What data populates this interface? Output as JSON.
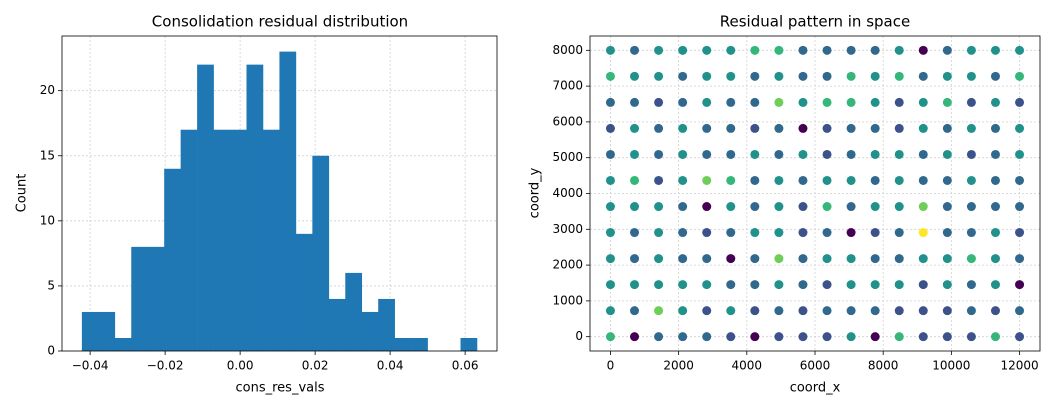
{
  "chart_data": [
    {
      "type": "histogram",
      "title": "Consolidation residual distribution",
      "x_label": "cons_res_vals",
      "y_label": "Count",
      "color": "#1f77b4",
      "grid": true,
      "bins": [
        -0.0422,
        -0.03781,
        -0.03342,
        -0.02903,
        -0.02464,
        -0.02025,
        -0.01586,
        -0.01147,
        -0.00708,
        -0.00269,
        0.0017,
        0.00609,
        0.01048,
        0.01487,
        0.01926,
        0.02365,
        0.02804,
        0.03243,
        0.03682,
        0.04121,
        0.0456,
        0.04999,
        0.05438,
        0.05877,
        0.06316
      ],
      "values": [
        3,
        3,
        1,
        8,
        8,
        14,
        17,
        22,
        17,
        17,
        22,
        17,
        23,
        9,
        15,
        4,
        6,
        3,
        4,
        1,
        1,
        0,
        0,
        1
      ],
      "xlim": [
        -0.0475,
        0.0685
      ],
      "xticks": [
        {
          "value": -0.04,
          "label": "−0.04"
        },
        {
          "value": -0.02,
          "label": "−0.02"
        },
        {
          "value": 0,
          "label": "0.00"
        },
        {
          "value": 0.02,
          "label": "0.02"
        },
        {
          "value": 0.04,
          "label": "0.04"
        },
        {
          "value": 0.06,
          "label": "0.06"
        }
      ],
      "ylim": [
        0,
        24.2
      ],
      "yticks": [
        0,
        5,
        10,
        15,
        20
      ]
    },
    {
      "type": "scatter",
      "title": "Residual pattern in space",
      "x_label": "coord_x",
      "y_label": "coord_y",
      "grid": true,
      "xlim": [
        -600,
        12600
      ],
      "xticks": [
        0,
        2000,
        4000,
        6000,
        8000,
        10000,
        12000
      ],
      "ylim": [
        -400,
        8400
      ],
      "yticks": [
        0,
        1000,
        2000,
        3000,
        4000,
        5000,
        6000,
        7000,
        8000
      ],
      "points": [
        [
          0,
          8000,
          "#21918c"
        ],
        [
          706,
          8000,
          "#31688e"
        ],
        [
          1412,
          8000,
          "#21918c"
        ],
        [
          2118,
          8000,
          "#21918c"
        ],
        [
          2824,
          8000,
          "#21918c"
        ],
        [
          3529,
          8000,
          "#21918c"
        ],
        [
          4235,
          8000,
          "#35b779"
        ],
        [
          4941,
          8000,
          "#35b779"
        ],
        [
          5647,
          8000,
          "#31688e"
        ],
        [
          6353,
          8000,
          "#31688e"
        ],
        [
          7059,
          8000,
          "#31688e"
        ],
        [
          7765,
          8000,
          "#31688e"
        ],
        [
          8471,
          8000,
          "#21918c"
        ],
        [
          9176,
          8000,
          "#440154"
        ],
        [
          9882,
          8000,
          "#31688e"
        ],
        [
          10588,
          8000,
          "#21918c"
        ],
        [
          11294,
          8000,
          "#21918c"
        ],
        [
          12000,
          8000,
          "#21918c"
        ],
        [
          0,
          7273,
          "#35b779"
        ],
        [
          706,
          7273,
          "#21918c"
        ],
        [
          1412,
          7273,
          "#21918c"
        ],
        [
          2118,
          7273,
          "#31688e"
        ],
        [
          2824,
          7273,
          "#21918c"
        ],
        [
          3529,
          7273,
          "#21918c"
        ],
        [
          4235,
          7273,
          "#31688e"
        ],
        [
          4941,
          7273,
          "#21918c"
        ],
        [
          5647,
          7273,
          "#31688e"
        ],
        [
          6353,
          7273,
          "#31688e"
        ],
        [
          7059,
          7273,
          "#35b779"
        ],
        [
          7765,
          7273,
          "#21918c"
        ],
        [
          8471,
          7273,
          "#35b779"
        ],
        [
          9176,
          7273,
          "#31688e"
        ],
        [
          9882,
          7273,
          "#21918c"
        ],
        [
          10588,
          7273,
          "#21918c"
        ],
        [
          11294,
          7273,
          "#31688e"
        ],
        [
          12000,
          7273,
          "#35b779"
        ],
        [
          0,
          6545,
          "#31688e"
        ],
        [
          706,
          6545,
          "#31688e"
        ],
        [
          1412,
          6545,
          "#3b528b"
        ],
        [
          2118,
          6545,
          "#31688e"
        ],
        [
          2824,
          6545,
          "#21918c"
        ],
        [
          3529,
          6545,
          "#31688e"
        ],
        [
          4235,
          6545,
          "#31688e"
        ],
        [
          4941,
          6545,
          "#6ece58"
        ],
        [
          5647,
          6545,
          "#21918c"
        ],
        [
          6353,
          6545,
          "#35b779"
        ],
        [
          7059,
          6545,
          "#35b779"
        ],
        [
          7765,
          6545,
          "#21918c"
        ],
        [
          8471,
          6545,
          "#3b528b"
        ],
        [
          9176,
          6545,
          "#21918c"
        ],
        [
          9882,
          6545,
          "#35b779"
        ],
        [
          10588,
          6545,
          "#3b528b"
        ],
        [
          11294,
          6545,
          "#21918c"
        ],
        [
          12000,
          6545,
          "#3b528b"
        ],
        [
          0,
          5818,
          "#3b528b"
        ],
        [
          706,
          5818,
          "#21918c"
        ],
        [
          1412,
          5818,
          "#31688e"
        ],
        [
          2118,
          5818,
          "#21918c"
        ],
        [
          2824,
          5818,
          "#31688e"
        ],
        [
          3529,
          5818,
          "#31688e"
        ],
        [
          4235,
          5818,
          "#3b528b"
        ],
        [
          4941,
          5818,
          "#31688e"
        ],
        [
          5647,
          5818,
          "#440154"
        ],
        [
          6353,
          5818,
          "#3b528b"
        ],
        [
          7059,
          5818,
          "#31688e"
        ],
        [
          7765,
          5818,
          "#31688e"
        ],
        [
          8471,
          5818,
          "#3b528b"
        ],
        [
          9176,
          5818,
          "#21918c"
        ],
        [
          9882,
          5818,
          "#31688e"
        ],
        [
          10588,
          5818,
          "#21918c"
        ],
        [
          11294,
          5818,
          "#31688e"
        ],
        [
          12000,
          5818,
          "#21918c"
        ],
        [
          0,
          5091,
          "#31688e"
        ],
        [
          706,
          5091,
          "#21918c"
        ],
        [
          1412,
          5091,
          "#31688e"
        ],
        [
          2118,
          5091,
          "#21918c"
        ],
        [
          2824,
          5091,
          "#31688e"
        ],
        [
          3529,
          5091,
          "#31688e"
        ],
        [
          4235,
          5091,
          "#21918c"
        ],
        [
          4941,
          5091,
          "#31688e"
        ],
        [
          5647,
          5091,
          "#21918c"
        ],
        [
          6353,
          5091,
          "#3b528b"
        ],
        [
          7059,
          5091,
          "#31688e"
        ],
        [
          7765,
          5091,
          "#21918c"
        ],
        [
          8471,
          5091,
          "#21918c"
        ],
        [
          9176,
          5091,
          "#31688e"
        ],
        [
          9882,
          5091,
          "#21918c"
        ],
        [
          10588,
          5091,
          "#3b528b"
        ],
        [
          11294,
          5091,
          "#31688e"
        ],
        [
          12000,
          5091,
          "#21918c"
        ],
        [
          0,
          4364,
          "#21918c"
        ],
        [
          706,
          4364,
          "#35b779"
        ],
        [
          1412,
          4364,
          "#3b528b"
        ],
        [
          2118,
          4364,
          "#21918c"
        ],
        [
          2824,
          4364,
          "#6ece58"
        ],
        [
          3529,
          4364,
          "#35b779"
        ],
        [
          4235,
          4364,
          "#31688e"
        ],
        [
          4941,
          4364,
          "#21918c"
        ],
        [
          5647,
          4364,
          "#31688e"
        ],
        [
          6353,
          4364,
          "#21918c"
        ],
        [
          7059,
          4364,
          "#21918c"
        ],
        [
          7765,
          4364,
          "#31688e"
        ],
        [
          8471,
          4364,
          "#21918c"
        ],
        [
          9176,
          4364,
          "#31688e"
        ],
        [
          9882,
          4364,
          "#31688e"
        ],
        [
          10588,
          4364,
          "#21918c"
        ],
        [
          11294,
          4364,
          "#31688e"
        ],
        [
          12000,
          4364,
          "#31688e"
        ],
        [
          0,
          3636,
          "#21918c"
        ],
        [
          706,
          3636,
          "#21918c"
        ],
        [
          1412,
          3636,
          "#21918c"
        ],
        [
          2118,
          3636,
          "#31688e"
        ],
        [
          2824,
          3636,
          "#440154"
        ],
        [
          3529,
          3636,
          "#21918c"
        ],
        [
          4235,
          3636,
          "#31688e"
        ],
        [
          4941,
          3636,
          "#21918c"
        ],
        [
          5647,
          3636,
          "#3b528b"
        ],
        [
          6353,
          3636,
          "#35b779"
        ],
        [
          7059,
          3636,
          "#31688e"
        ],
        [
          7765,
          3636,
          "#21918c"
        ],
        [
          8471,
          3636,
          "#21918c"
        ],
        [
          9176,
          3636,
          "#6ece58"
        ],
        [
          9882,
          3636,
          "#31688e"
        ],
        [
          10588,
          3636,
          "#31688e"
        ],
        [
          11294,
          3636,
          "#31688e"
        ],
        [
          12000,
          3636,
          "#31688e"
        ],
        [
          0,
          2909,
          "#21918c"
        ],
        [
          706,
          2909,
          "#31688e"
        ],
        [
          1412,
          2909,
          "#21918c"
        ],
        [
          2118,
          2909,
          "#31688e"
        ],
        [
          2824,
          2909,
          "#3b528b"
        ],
        [
          3529,
          2909,
          "#31688e"
        ],
        [
          4235,
          2909,
          "#21918c"
        ],
        [
          4941,
          2909,
          "#21918c"
        ],
        [
          5647,
          2909,
          "#3b528b"
        ],
        [
          6353,
          2909,
          "#31688e"
        ],
        [
          7059,
          2909,
          "#440154"
        ],
        [
          7765,
          2909,
          "#3b528b"
        ],
        [
          8471,
          2909,
          "#31688e"
        ],
        [
          9176,
          2909,
          "#fde725"
        ],
        [
          9882,
          2909,
          "#31688e"
        ],
        [
          10588,
          2909,
          "#31688e"
        ],
        [
          11294,
          2909,
          "#21918c"
        ],
        [
          12000,
          2909,
          "#3b528b"
        ],
        [
          0,
          2182,
          "#21918c"
        ],
        [
          706,
          2182,
          "#31688e"
        ],
        [
          1412,
          2182,
          "#21918c"
        ],
        [
          2118,
          2182,
          "#31688e"
        ],
        [
          2824,
          2182,
          "#31688e"
        ],
        [
          3529,
          2182,
          "#440154"
        ],
        [
          4235,
          2182,
          "#31688e"
        ],
        [
          4941,
          2182,
          "#6ece58"
        ],
        [
          5647,
          2182,
          "#31688e"
        ],
        [
          6353,
          2182,
          "#21918c"
        ],
        [
          7059,
          2182,
          "#21918c"
        ],
        [
          7765,
          2182,
          "#31688e"
        ],
        [
          8471,
          2182,
          "#31688e"
        ],
        [
          9176,
          2182,
          "#21918c"
        ],
        [
          9882,
          2182,
          "#21918c"
        ],
        [
          10588,
          2182,
          "#35b779"
        ],
        [
          11294,
          2182,
          "#21918c"
        ],
        [
          12000,
          2182,
          "#31688e"
        ],
        [
          0,
          1455,
          "#21918c"
        ],
        [
          706,
          1455,
          "#21918c"
        ],
        [
          1412,
          1455,
          "#21918c"
        ],
        [
          2118,
          1455,
          "#21918c"
        ],
        [
          2824,
          1455,
          "#21918c"
        ],
        [
          3529,
          1455,
          "#31688e"
        ],
        [
          4235,
          1455,
          "#31688e"
        ],
        [
          4941,
          1455,
          "#21918c"
        ],
        [
          5647,
          1455,
          "#31688e"
        ],
        [
          6353,
          1455,
          "#3b528b"
        ],
        [
          7059,
          1455,
          "#21918c"
        ],
        [
          7765,
          1455,
          "#21918c"
        ],
        [
          8471,
          1455,
          "#21918c"
        ],
        [
          9176,
          1455,
          "#3b528b"
        ],
        [
          9882,
          1455,
          "#21918c"
        ],
        [
          10588,
          1455,
          "#31688e"
        ],
        [
          11294,
          1455,
          "#21918c"
        ],
        [
          12000,
          1455,
          "#440154"
        ],
        [
          0,
          727,
          "#21918c"
        ],
        [
          706,
          727,
          "#31688e"
        ],
        [
          1412,
          727,
          "#6ece58"
        ],
        [
          2118,
          727,
          "#21918c"
        ],
        [
          2824,
          727,
          "#3b528b"
        ],
        [
          3529,
          727,
          "#21918c"
        ],
        [
          4235,
          727,
          "#3b528b"
        ],
        [
          4941,
          727,
          "#31688e"
        ],
        [
          5647,
          727,
          "#3b528b"
        ],
        [
          6353,
          727,
          "#31688e"
        ],
        [
          7059,
          727,
          "#31688e"
        ],
        [
          7765,
          727,
          "#31688e"
        ],
        [
          8471,
          727,
          "#3b528b"
        ],
        [
          9176,
          727,
          "#3b528b"
        ],
        [
          9882,
          727,
          "#3b528b"
        ],
        [
          10588,
          727,
          "#31688e"
        ],
        [
          11294,
          727,
          "#3b528b"
        ],
        [
          12000,
          727,
          "#31688e"
        ],
        [
          0,
          0,
          "#35b779"
        ],
        [
          706,
          0,
          "#440154"
        ],
        [
          1412,
          0,
          "#31688e"
        ],
        [
          2118,
          0,
          "#31688e"
        ],
        [
          2824,
          0,
          "#31688e"
        ],
        [
          3529,
          0,
          "#3b528b"
        ],
        [
          4235,
          0,
          "#440154"
        ],
        [
          4941,
          0,
          "#3b528b"
        ],
        [
          5647,
          0,
          "#3b528b"
        ],
        [
          6353,
          0,
          "#3b528b"
        ],
        [
          7059,
          0,
          "#21918c"
        ],
        [
          7765,
          0,
          "#440154"
        ],
        [
          8471,
          0,
          "#35b779"
        ],
        [
          9176,
          0,
          "#3b528b"
        ],
        [
          9882,
          0,
          "#3b528b"
        ],
        [
          10588,
          0,
          "#3b528b"
        ],
        [
          11294,
          0,
          "#35b779"
        ],
        [
          12000,
          0,
          "#3b528b"
        ]
      ]
    }
  ]
}
